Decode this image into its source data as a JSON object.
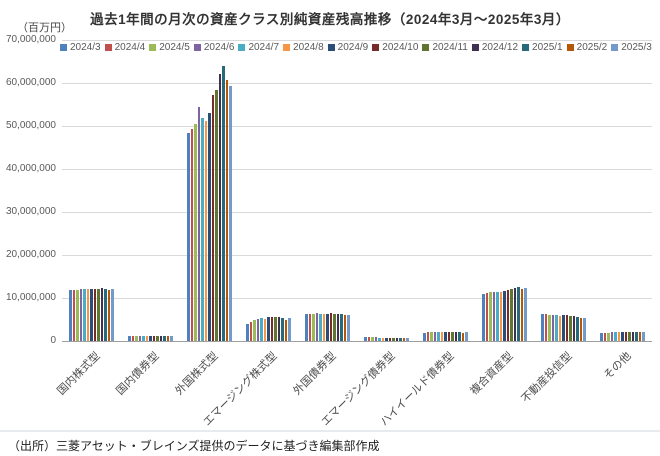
{
  "page": {
    "title": "過去1年間の月次の資産クラス別純資産残高推移（2024年3月～2025年3月）",
    "unit_label": "（百万円）",
    "source_note": "（出所）三菱アセット・ブレインズ提供のデータに基づき編集部作成"
  },
  "colors": {
    "grid": "#d9d9d9",
    "axis": "#9f9f9f",
    "tick_text": "#595959",
    "title_text": "#333333"
  },
  "chart_data": {
    "type": "bar",
    "title": "過去1年間の月次の資産クラス別純資産残高推移（2024年3月～2025年3月）",
    "xlabel": "",
    "ylabel": "百万円",
    "ylim": [
      0,
      70000000
    ],
    "ytick_interval": 10000000,
    "grid": true,
    "legend_position": "top",
    "categories": [
      "国内株式型",
      "国内債券型",
      "外国株式型",
      "エマージング株式型",
      "外国債券型",
      "エマージング債券型",
      "ハイイールド債券型",
      "複合資産型",
      "不動産投信型",
      "その他"
    ],
    "series": [
      {
        "name": "2024/3",
        "color": "#4F81BD",
        "values": [
          11800000,
          1100000,
          48500000,
          3900000,
          6300000,
          900000,
          1900000,
          11000000,
          6200000,
          1800000
        ]
      },
      {
        "name": "2024/4",
        "color": "#C0504D",
        "values": [
          11900000,
          1100000,
          49300000,
          4400000,
          6400000,
          900000,
          2000000,
          11200000,
          6200000,
          1900000
        ]
      },
      {
        "name": "2024/5",
        "color": "#9BBB59",
        "values": [
          11900000,
          1100000,
          50500000,
          4800000,
          6400000,
          850000,
          2000000,
          11300000,
          6100000,
          1900000
        ]
      },
      {
        "name": "2024/6",
        "color": "#8064A2",
        "values": [
          12200000,
          1100000,
          54500000,
          5200000,
          6500000,
          850000,
          2100000,
          11500000,
          6100000,
          2000000
        ]
      },
      {
        "name": "2024/7",
        "color": "#4BACC6",
        "values": [
          12100000,
          1100000,
          51800000,
          5300000,
          6400000,
          800000,
          2000000,
          11400000,
          6000000,
          2000000
        ]
      },
      {
        "name": "2024/8",
        "color": "#F79646",
        "values": [
          12000000,
          1150000,
          51200000,
          5200000,
          6300000,
          800000,
          2000000,
          11400000,
          5900000,
          2000000
        ]
      },
      {
        "name": "2024/9",
        "color": "#2C4D75",
        "values": [
          12100000,
          1150000,
          53000000,
          5500000,
          6400000,
          800000,
          2000000,
          11600000,
          6000000,
          2100000
        ]
      },
      {
        "name": "2024/10",
        "color": "#772C2A",
        "values": [
          12200000,
          1200000,
          57300000,
          5600000,
          6500000,
          800000,
          2100000,
          11900000,
          6000000,
          2100000
        ]
      },
      {
        "name": "2024/11",
        "color": "#5F7530",
        "values": [
          12200000,
          1200000,
          58300000,
          5600000,
          6400000,
          800000,
          2100000,
          12100000,
          5900000,
          2200000
        ]
      },
      {
        "name": "2024/12",
        "color": "#403152",
        "values": [
          12300000,
          1200000,
          62000000,
          5500000,
          6300000,
          750000,
          2100000,
          12400000,
          5800000,
          2200000
        ]
      },
      {
        "name": "2025/1",
        "color": "#276A7C",
        "values": [
          12200000,
          1200000,
          64000000,
          5300000,
          6200000,
          750000,
          2000000,
          12500000,
          5600000,
          2200000
        ]
      },
      {
        "name": "2025/2",
        "color": "#B65708",
        "values": [
          11800000,
          1250000,
          60800000,
          5000000,
          6000000,
          700000,
          1900000,
          12200000,
          5300000,
          2100000
        ]
      },
      {
        "name": "2025/3",
        "color": "#729ACA",
        "values": [
          12000000,
          1250000,
          59300000,
          5300000,
          6100000,
          700000,
          2000000,
          12300000,
          5400000,
          2200000
        ]
      }
    ]
  }
}
